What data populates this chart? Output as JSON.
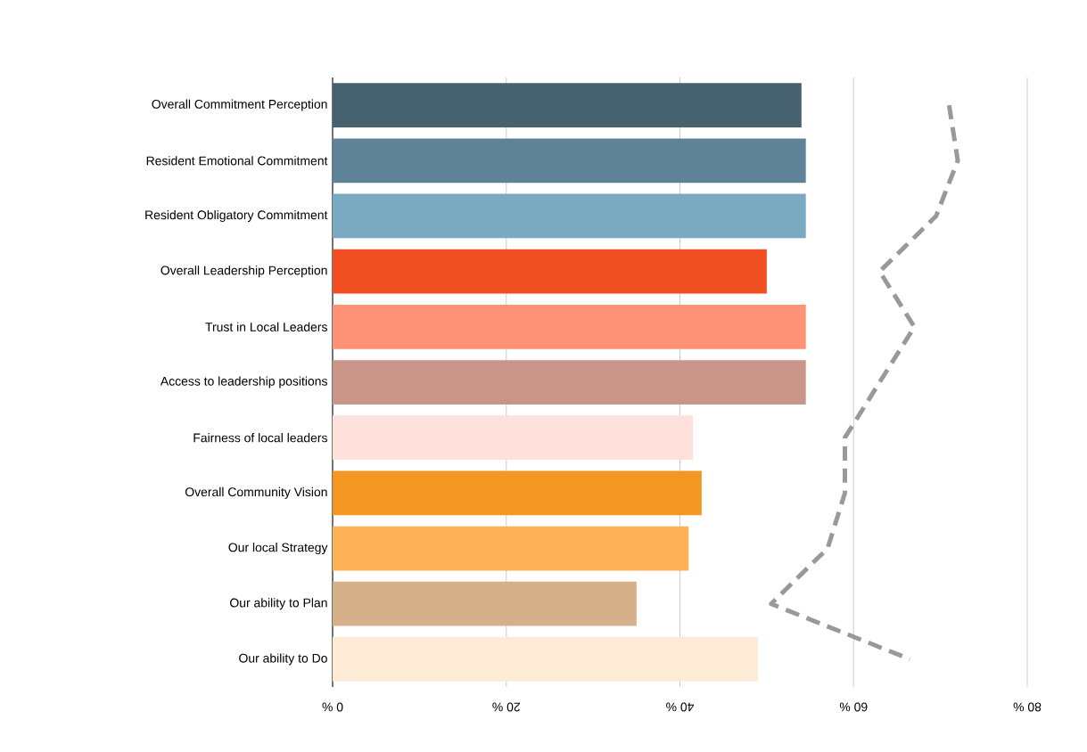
{
  "chart_data": {
    "type": "bar",
    "orientation": "horizontal",
    "categories": [
      "Overall Commitment Perception",
      "Resident Emotional Commitment",
      "Resident Obligatory Commitment",
      "Overall Leadership Perception",
      "Trust in Local Leaders",
      "Access to leadership positions",
      "Fairness of local leaders",
      "Overall Community Vision",
      "Our local Strategy",
      "Our ability to Plan",
      "Our ability to Do"
    ],
    "series": [
      {
        "colors": [
          "#47626f",
          "#5f8396",
          "#7aaac1",
          "#f05024",
          "#fe9277",
          "#c99588",
          "#fde1da",
          "#f39622",
          "#fdb259",
          "#d5b08b",
          "#fdebd6"
        ],
        "values": [
          54,
          54.5,
          54.5,
          50,
          54.5,
          54.5,
          41.5,
          42.5,
          41,
          35,
          49
        ]
      },
      {
        "type": "line",
        "color": "#999999",
        "line_style": "dashed",
        "marker": "none",
        "values": [
          71,
          72,
          69.5,
          63,
          67,
          63,
          59,
          59,
          57,
          50.5,
          66.5
        ]
      }
    ],
    "xlim": [
      0,
      80
    ],
    "xticks": [
      {
        "value": 0,
        "label": "0 %"
      },
      {
        "value": 20,
        "label": "20 %"
      },
      {
        "value": 40,
        "label": "40 %"
      },
      {
        "value": 60,
        "label": "60 %"
      },
      {
        "value": 80,
        "label": "80 %"
      }
    ],
    "grid": "x"
  }
}
